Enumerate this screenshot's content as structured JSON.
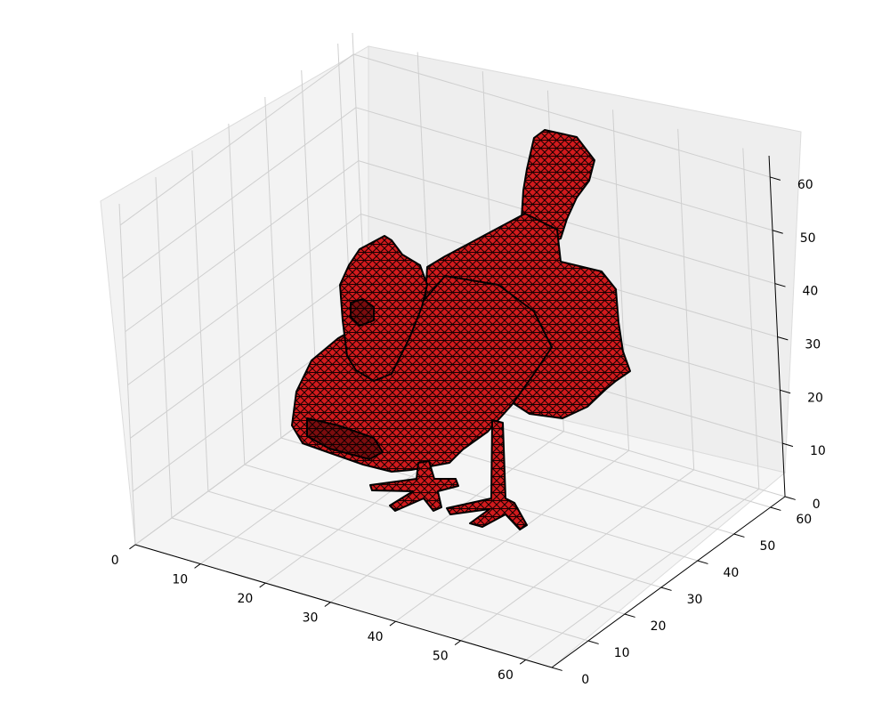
{
  "chart_data": {
    "type": "3d-voxel",
    "title": "",
    "xlabel": "",
    "ylabel": "",
    "zlabel": "",
    "grid": true,
    "legend": "none",
    "xlim": [
      0,
      64
    ],
    "ylim": [
      0,
      64
    ],
    "zlim": [
      0,
      64
    ],
    "x_ticks": [
      "0",
      "10",
      "20",
      "30",
      "40",
      "50",
      "60"
    ],
    "y_ticks": [
      "0",
      "10",
      "20",
      "30",
      "40",
      "50",
      "60"
    ],
    "z_ticks": [
      "0",
      "10",
      "20",
      "30",
      "40",
      "50",
      "60"
    ],
    "series": [
      {
        "object": "chicken",
        "face_color": "#e0191c",
        "edge_color": "#000000"
      }
    ]
  }
}
